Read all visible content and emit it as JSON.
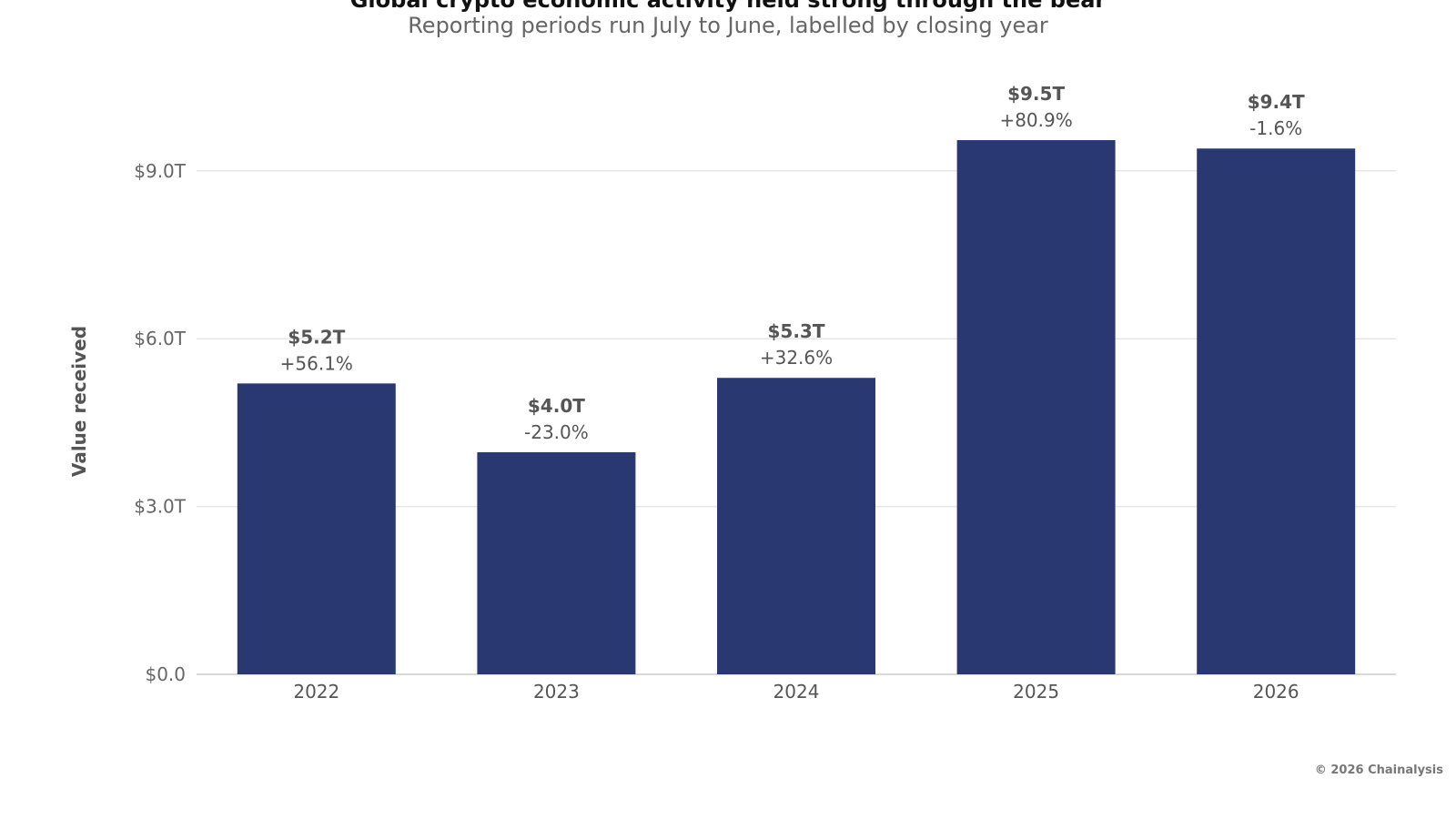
{
  "chart_data": {
    "type": "bar",
    "title": "Global crypto economic activity held strong through the bear",
    "subtitle": "Reporting periods run July to June, labelled by closing year",
    "ylabel": "Value received",
    "xlabel": "",
    "categories": [
      "2022",
      "2023",
      "2024",
      "2025",
      "2026"
    ],
    "values": [
      5.2,
      3.97,
      5.3,
      9.55,
      9.4
    ],
    "value_labels": [
      "$5.2T",
      "$4.0T",
      "$5.3T",
      "$9.5T",
      "$9.4T"
    ],
    "change_labels": [
      "+56.1%",
      "-23.0%",
      "+32.6%",
      "+80.9%",
      "-1.6%"
    ],
    "yticks": [
      0,
      3,
      6,
      9
    ],
    "ytick_labels": [
      "$0.0",
      "$3.0T",
      "$6.0T",
      "$9.0T"
    ],
    "ylim": [
      0,
      9.55
    ],
    "grid": true,
    "bar_color": "#293871"
  },
  "credit": "© 2026 Chainalysis"
}
